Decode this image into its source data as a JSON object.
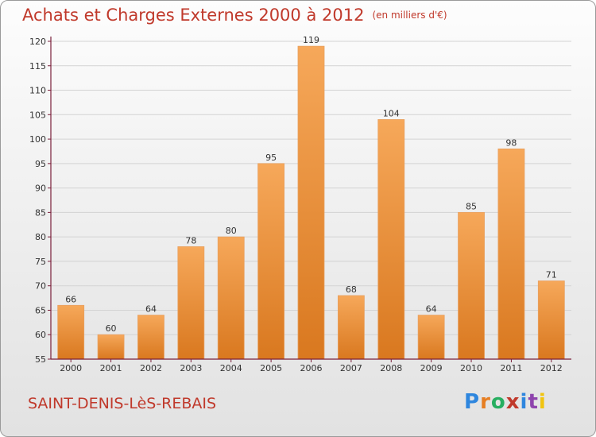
{
  "header": {
    "title": "Achats et Charges Externes 2000 à 2012",
    "unit": "(en milliers d'€)"
  },
  "footer": {
    "commune": "SAINT-DENIS-LèS-REBAIS",
    "logo": "Proxiti"
  },
  "colors": {
    "bar": "#f0902e",
    "bar_light": "#f6a85a",
    "bar_dark": "#d9781f",
    "axis": "#7a1f3a",
    "title": "#c0392b"
  },
  "chart_data": {
    "type": "bar",
    "title": "Achats et Charges Externes 2000 à 2012",
    "subtitle": "(en milliers d'€)",
    "categories": [
      "2000",
      "2001",
      "2002",
      "2003",
      "2004",
      "2005",
      "2006",
      "2007",
      "2008",
      "2009",
      "2010",
      "2011",
      "2012"
    ],
    "values": [
      66,
      60,
      64,
      78,
      80,
      95,
      119,
      68,
      104,
      64,
      85,
      98,
      71
    ],
    "ylim": [
      55,
      120
    ],
    "yticks": [
      55,
      60,
      65,
      70,
      75,
      80,
      85,
      90,
      95,
      100,
      105,
      110,
      115,
      120
    ],
    "grid": true,
    "xlabel": "",
    "ylabel": ""
  }
}
